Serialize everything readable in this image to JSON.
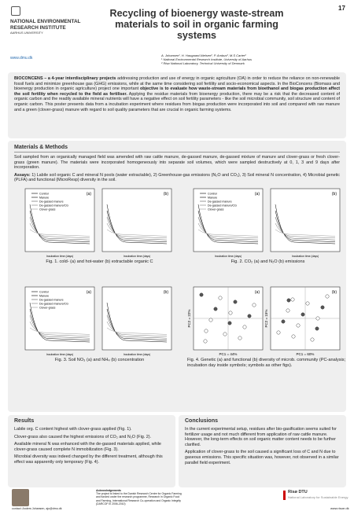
{
  "header": {
    "page_number": "17",
    "logo_lines": [
      "NATIONAL ENVIRONMENTAL",
      "RESEARCH INSTITUTE",
      "AARHUS UNIVERSITY"
    ],
    "url": "www.dmu.dk",
    "title": "Recycling of bioenergy waste-stream materials to soil in organic farming systems",
    "authors": "A. Johansen¹, H. Haugaard-Nielsen², P. Ambus², M.S Carter²",
    "affiliations": [
      "¹ National Environmental Research Institute, University of Aarhus",
      "² Risø National Laboratory, Technical University of Denmark"
    ]
  },
  "intro": {
    "segments": [
      {
        "text": "BIOCONCENS – a 4-year interdisciplinary projects",
        "bold": true
      },
      {
        "text": " addressing production and use of energy in organic agriculture (OA) in order to reduce the reliance on non-renewable fossil fuels and minimize greenhouse gas (GHG) emissions, while at the same time considering soil fertility and socio-economical aspects. In the BioConcens (Biomass and bioenergy production in organic agriculture) project one important ",
        "bold": false
      },
      {
        "text": "objective is to evaluate how waste-stream materials from bioethanol and biogas production affect the soil fertility when recycled to the field as fertiliser.",
        "bold": true
      },
      {
        "text": " Applying the residue materials from bioenergy production, there may be a risk that the decreased content of organic carbon and the readily available mineral nutrients will have a negative effect on soil fertility parameters - like the soil microbial community, soil structure and content of organic carbon. This poster presents data from a incubation experiment where residues from biogas production were incorporated into soil and compared with raw manure and a green (clover-grass) manure with regard to soil quality parameters that are crucial in organic farming systems.",
        "bold": false
      }
    ]
  },
  "methods": {
    "title": "Materials & Methods",
    "paragraph": "Soil sampled from an organically managed field was amended with raw cattle manure, de-gassed manure, de-gassed mixture of manure and clover-grass or fresh clover-grass (green manure). The materials were incorporated homogeneously into separate soil volumes, which were sampled destructively at 0, 1, 3 and 9 days after incorporation.",
    "assays_lead": "Assays:",
    "assays": " 1) Labile soil organic C and mineral N pools (water extractable), 2) Greenhouse-gas emissions (N₂O and CO₂), 3) Soil mineral N concentration, 4) Microbial genetic (PLFA) and functional (MicroResp) diversity in the soil."
  },
  "figures": [
    {
      "caption": "Fig. 1. cold- (a) and hot-water (b) extractable organic C",
      "panels": [
        "(a)",
        "(b)"
      ],
      "x_label": "Incubation time (days)",
      "legend": [
        "Control",
        "Manure",
        "De-gassed manure",
        "De-gassed manure/CG",
        "Clover-grass"
      ]
    },
    {
      "caption": "Fig. 2. CO₂ (a) and N₂O (b) emissions",
      "panels": [
        "(a)",
        "(b)"
      ],
      "x_label": "Incubation time (days)",
      "legend": [
        "Control",
        "Manure",
        "De-gassed manure",
        "De-gassed manure/CG",
        "Clover-grass"
      ]
    },
    {
      "caption": "Fig. 3. Soil NO₃ (a) and NH₄ (b) concentration",
      "panels": [
        "(a)",
        "(b)"
      ],
      "x_label": "Incubation time (days)",
      "legend": [
        "Control",
        "Manure",
        "De-gassed manure",
        "De-gassed manure/CG",
        "Clover-grass"
      ]
    },
    {
      "caption": "Fig. 4. Genetic (a) and functional (b) diversity of microb. community (PC-analysis; incubation day inside symbols; symbols as other figs).",
      "panels": [
        "(a)",
        "(b)"
      ],
      "pc_x": [
        "PC1 = 44%",
        "PC1 = 60%"
      ],
      "pc_y": [
        "PC2 = 22%",
        "PC2 = 15%"
      ]
    }
  ],
  "results": {
    "title": "Results",
    "paragraphs": [
      "Labile org. C content highest with clover-grass applied (Fig. 1).",
      "Clover-grass also caused the highest emissions of CO₂ and N₂O (Fig. 2).",
      "Available mineral N was enhanced with the de-gassed materials applied, while clover-grass caused complete N immobilization (Fig. 3).",
      "Microbial diversity was indeed changed by the different treatment, although this effect was apparently only temporary (Fig. 4)."
    ]
  },
  "conclusions": {
    "title": "Conclusions",
    "paragraphs": [
      "In the current experimental setup, residues after bio-gasification seems suited for fertilizer usage and not much different from application of raw cattle manure. However, the long-term effects on soil organic matter content needs to be further clarified.",
      "Application of clover-grass to the soil caused a significant loss of C and N due to gaseous emissions. This specific situation was, however, not observed in a similar parallel field experiment."
    ]
  },
  "footer": {
    "contact": "contact: Anders Johansen, ajo@dmu.dk",
    "ack_title": "Acknowledgements",
    "ack_text": "The project is linked to the Danish Research Centre for Organic Farming and funded under the research programme, Research in Organic Food and Farming, International Research Co-operation and Organic Integrity (DARCOF III 2006-2010)",
    "riso_name": "Risø DTU",
    "riso_subtitle": "National Laboratory for Sustainable Energy",
    "riso_url": "www.risoe.dk"
  }
}
